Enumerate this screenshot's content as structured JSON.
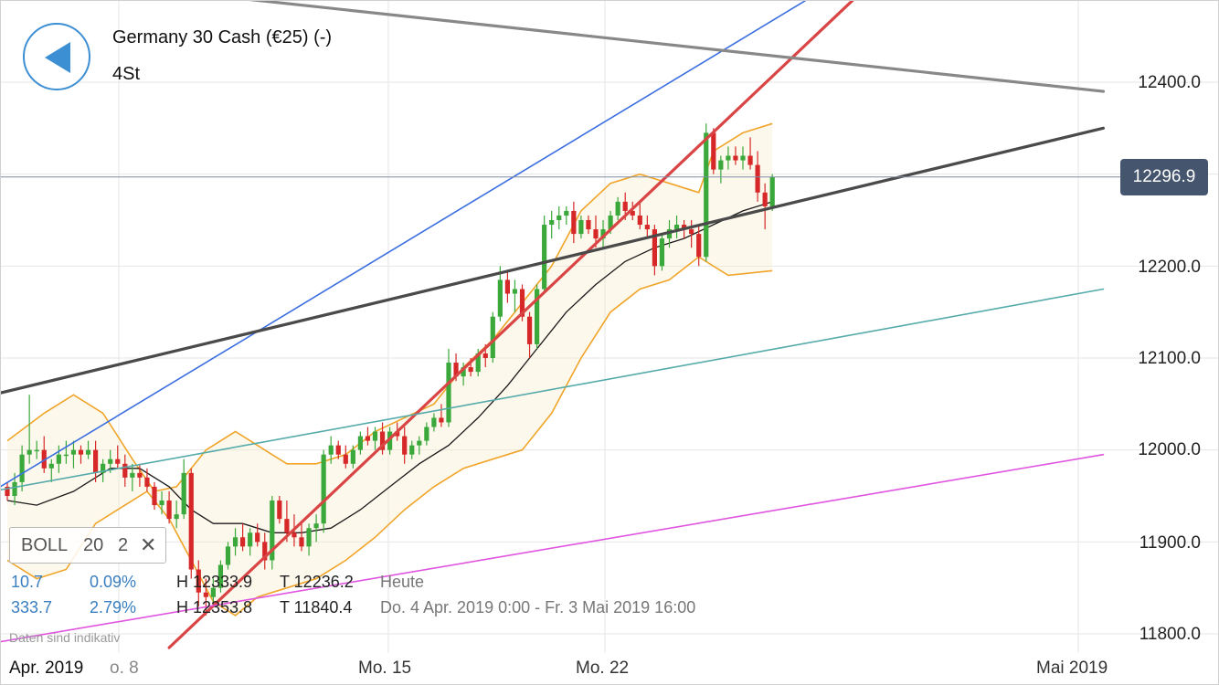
{
  "header": {
    "instrument": "Germany 30 Cash (€25) (-)",
    "interval": "4St"
  },
  "current_price": "12296.9",
  "indicator": {
    "name": "BOLL",
    "period": "20",
    "deviation": "2",
    "close_symbol": "✕"
  },
  "stats": {
    "row1": {
      "change": "10.7",
      "change_pct": "0.09%",
      "high": "H 12333.9",
      "low": "T 12236.2",
      "period": "Heute"
    },
    "row2": {
      "change": "333.7",
      "change_pct": "2.79%",
      "high": "H 12353.8",
      "low": "T 11840.4",
      "period": "Do. 4 Apr. 2019 0:00 - Fr. 3 Mai 2019 16:00"
    }
  },
  "disclaimer": "Daten sind indikativ",
  "colors": {
    "bull": "#3aa83a",
    "bear": "#d62828",
    "boll_band": "#f0a52a",
    "boll_mid": "#1a1a1a",
    "accent": "#3d8fd4",
    "price_line": "#45556e"
  },
  "chart_data": {
    "type": "candlestick",
    "title": "Germany 30 Cash (€25) (-)",
    "timeframe": "4St",
    "y_ticks": [
      "12400.0",
      "12200.0",
      "12100.0",
      "12000.0",
      "11900.0",
      "11800.0"
    ],
    "x_ticks": [
      "Apr. 2019",
      "o. 8",
      "Mo. 15",
      "Mo. 22",
      "Mai 2019"
    ],
    "ylim": [
      11770,
      12525
    ],
    "current_price": 12296.9,
    "grid": true,
    "candles": [
      [
        11960,
        11965,
        11945,
        11950
      ],
      [
        11950,
        11975,
        11940,
        11965
      ],
      [
        11965,
        12005,
        11955,
        11995
      ],
      [
        11995,
        12060,
        11985,
        12000
      ],
      [
        12000,
        12010,
        11990,
        12000
      ],
      [
        12000,
        12015,
        11975,
        11980
      ],
      [
        11980,
        11990,
        11965,
        11985
      ],
      [
        11985,
        12005,
        11975,
        11995
      ],
      [
        11995,
        12010,
        11985,
        11995
      ],
      [
        11995,
        12010,
        11980,
        12000
      ],
      [
        12000,
        12005,
        11985,
        11995
      ],
      [
        11995,
        12010,
        11990,
        12000
      ],
      [
        12000,
        12010,
        11965,
        11975
      ],
      [
        11975,
        11990,
        11965,
        11985
      ],
      [
        11985,
        12000,
        11975,
        11990
      ],
      [
        11990,
        12005,
        11980,
        11985
      ],
      [
        11985,
        11995,
        11960,
        11970
      ],
      [
        11970,
        11985,
        11955,
        11975
      ],
      [
        11975,
        11985,
        11960,
        11970
      ],
      [
        11970,
        11980,
        11955,
        11960
      ],
      [
        11960,
        11965,
        11935,
        11940
      ],
      [
        11940,
        11955,
        11930,
        11945
      ],
      [
        11945,
        11955,
        11920,
        11925
      ],
      [
        11925,
        11945,
        11915,
        11930
      ],
      [
        11930,
        11990,
        11925,
        11975
      ],
      [
        11975,
        11980,
        11860,
        11870
      ],
      [
        11870,
        11880,
        11830,
        11845
      ],
      [
        11845,
        11860,
        11820,
        11840
      ],
      [
        11840,
        11860,
        11830,
        11850
      ],
      [
        11850,
        11880,
        11845,
        11875
      ],
      [
        11875,
        11900,
        11870,
        11895
      ],
      [
        11895,
        11915,
        11885,
        11905
      ],
      [
        11905,
        11920,
        11890,
        11895
      ],
      [
        11895,
        11915,
        11885,
        11910
      ],
      [
        11910,
        11920,
        11895,
        11900
      ],
      [
        11900,
        11910,
        11870,
        11880
      ],
      [
        11880,
        11950,
        11870,
        11945
      ],
      [
        11945,
        11950,
        11920,
        11925
      ],
      [
        11925,
        11945,
        11900,
        11910
      ],
      [
        11910,
        11930,
        11895,
        11905
      ],
      [
        11905,
        11920,
        11890,
        11895
      ],
      [
        11895,
        11920,
        11885,
        11915
      ],
      [
        11915,
        11930,
        11900,
        11920
      ],
      [
        11920,
        12000,
        11910,
        11995
      ],
      [
        11995,
        12015,
        11985,
        12005
      ],
      [
        12005,
        12010,
        11990,
        11995
      ],
      [
        11995,
        12005,
        11980,
        11985
      ],
      [
        11985,
        12005,
        11980,
        12000
      ],
      [
        12000,
        12020,
        11995,
        12015
      ],
      [
        12015,
        12025,
        12005,
        12010
      ],
      [
        12010,
        12025,
        12000,
        12020
      ],
      [
        12020,
        12030,
        11995,
        12000
      ],
      [
        12000,
        12025,
        11995,
        12020
      ],
      [
        12020,
        12030,
        12010,
        12015
      ],
      [
        12015,
        12025,
        11985,
        11995
      ],
      [
        11995,
        12010,
        11990,
        12005
      ],
      [
        12005,
        12015,
        11995,
        12010
      ],
      [
        12010,
        12030,
        12005,
        12025
      ],
      [
        12025,
        12040,
        12020,
        12035
      ],
      [
        12035,
        12050,
        12025,
        12030
      ],
      [
        12030,
        12110,
        12025,
        12095
      ],
      [
        12095,
        12105,
        12075,
        12080
      ],
      [
        12080,
        12095,
        12070,
        12090
      ],
      [
        12090,
        12100,
        12080,
        12085
      ],
      [
        12085,
        12110,
        12080,
        12105
      ],
      [
        12105,
        12115,
        12090,
        12100
      ],
      [
        12100,
        12150,
        12095,
        12145
      ],
      [
        12145,
        12200,
        12140,
        12185
      ],
      [
        12185,
        12195,
        12160,
        12170
      ],
      [
        12170,
        12185,
        12150,
        12175
      ],
      [
        12175,
        12180,
        12140,
        12145
      ],
      [
        12145,
        12150,
        12100,
        12115
      ],
      [
        12115,
        12180,
        12110,
        12175
      ],
      [
        12175,
        12255,
        12170,
        12245
      ],
      [
        12245,
        12260,
        12230,
        12250
      ],
      [
        12250,
        12265,
        12240,
        12255
      ],
      [
        12255,
        12265,
        12245,
        12260
      ],
      [
        12260,
        12270,
        12225,
        12235
      ],
      [
        12235,
        12255,
        12230,
        12250
      ],
      [
        12250,
        12255,
        12235,
        12240
      ],
      [
        12240,
        12255,
        12220,
        12230
      ],
      [
        12230,
        12250,
        12220,
        12240
      ],
      [
        12240,
        12260,
        12235,
        12255
      ],
      [
        12255,
        12275,
        12250,
        12270
      ],
      [
        12270,
        12280,
        12250,
        12260
      ],
      [
        12260,
        12270,
        12250,
        12255
      ],
      [
        12255,
        12270,
        12240,
        12245
      ],
      [
        12245,
        12255,
        12230,
        12240
      ],
      [
        12240,
        12245,
        12190,
        12200
      ],
      [
        12200,
        12235,
        12195,
        12230
      ],
      [
        12230,
        12250,
        12220,
        12240
      ],
      [
        12240,
        12255,
        12230,
        12245
      ],
      [
        12245,
        12250,
        12230,
        12240
      ],
      [
        12240,
        12250,
        12220,
        12235
      ],
      [
        12235,
        12245,
        12200,
        12210
      ],
      [
        12210,
        12355,
        12205,
        12345
      ],
      [
        12345,
        12350,
        12300,
        12305
      ],
      [
        12305,
        12320,
        12290,
        12315
      ],
      [
        12315,
        12330,
        12305,
        12320
      ],
      [
        12320,
        12330,
        12310,
        12315
      ],
      [
        12315,
        12330,
        12305,
        12320
      ],
      [
        12320,
        12340,
        12305,
        12310
      ],
      [
        12310,
        12325,
        12270,
        12280
      ],
      [
        12280,
        12290,
        12240,
        12265
      ],
      [
        12265,
        12300,
        12260,
        12297
      ]
    ],
    "bollinger": {
      "period": 20,
      "deviation": 2,
      "upper": [
        [
          0,
          12010
        ],
        [
          5,
          12040
        ],
        [
          9,
          12060
        ],
        [
          13,
          12040
        ],
        [
          17,
          11990
        ],
        [
          20,
          11955
        ],
        [
          23,
          11960
        ],
        [
          27,
          12000
        ],
        [
          31,
          12020
        ],
        [
          35,
          12000
        ],
        [
          38,
          11985
        ],
        [
          42,
          11985
        ],
        [
          46,
          11995
        ],
        [
          50,
          12020
        ],
        [
          54,
          12035
        ],
        [
          58,
          12050
        ],
        [
          62,
          12090
        ],
        [
          66,
          12120
        ],
        [
          70,
          12160
        ],
        [
          74,
          12200
        ],
        [
          78,
          12260
        ],
        [
          82,
          12290
        ],
        [
          86,
          12300
        ],
        [
          90,
          12290
        ],
        [
          94,
          12280
        ],
        [
          96,
          12325
        ],
        [
          100,
          12345
        ],
        [
          104,
          12355
        ]
      ],
      "middle": [
        [
          0,
          11945
        ],
        [
          4,
          11940
        ],
        [
          9,
          11955
        ],
        [
          14,
          11980
        ],
        [
          18,
          11980
        ],
        [
          22,
          11960
        ],
        [
          25,
          11935
        ],
        [
          28,
          11920
        ],
        [
          32,
          11920
        ],
        [
          36,
          11910
        ],
        [
          40,
          11910
        ],
        [
          44,
          11915
        ],
        [
          48,
          11935
        ],
        [
          52,
          11960
        ],
        [
          56,
          11985
        ],
        [
          60,
          12005
        ],
        [
          64,
          12035
        ],
        [
          68,
          12070
        ],
        [
          72,
          12110
        ],
        [
          76,
          12150
        ],
        [
          80,
          12180
        ],
        [
          84,
          12205
        ],
        [
          88,
          12220
        ],
        [
          92,
          12230
        ],
        [
          96,
          12245
        ],
        [
          100,
          12260
        ],
        [
          104,
          12270
        ]
      ],
      "lower": [
        [
          0,
          11880
        ],
        [
          4,
          11860
        ],
        [
          8,
          11870
        ],
        [
          12,
          11920
        ],
        [
          16,
          11940
        ],
        [
          19,
          11955
        ],
        [
          22,
          11925
        ],
        [
          25,
          11880
        ],
        [
          28,
          11835
        ],
        [
          31,
          11820
        ],
        [
          34,
          11840
        ],
        [
          38,
          11850
        ],
        [
          42,
          11860
        ],
        [
          46,
          11880
        ],
        [
          50,
          11905
        ],
        [
          54,
          11935
        ],
        [
          58,
          11960
        ],
        [
          62,
          11980
        ],
        [
          66,
          11990
        ],
        [
          70,
          12000
        ],
        [
          74,
          12040
        ],
        [
          78,
          12100
        ],
        [
          82,
          12150
        ],
        [
          86,
          12175
        ],
        [
          90,
          12185
        ],
        [
          94,
          12210
        ],
        [
          98,
          12190
        ],
        [
          104,
          12195
        ]
      ]
    },
    "trendlines": [
      {
        "color": "#3b6fe0",
        "x1": -2,
        "y1": 11955,
        "x2": 116,
        "y2": 12525
      },
      {
        "color": "#d94545",
        "x1": 22,
        "y1": 11785,
        "x2": 119,
        "y2": 12520
      },
      {
        "color": "#4a4a4a",
        "x1": -2,
        "y1": 12060,
        "x2": 149,
        "y2": 12350
      },
      {
        "color": "#888888",
        "x1": -2,
        "y1": 12520,
        "x2": 149,
        "y2": 12390
      },
      {
        "color": "#55aaaa",
        "x1": -2,
        "y1": 11955,
        "x2": 149,
        "y2": 12175
      },
      {
        "color": "#e055e0",
        "x1": -2,
        "y1": 11790,
        "x2": 149,
        "y2": 11995
      }
    ]
  }
}
